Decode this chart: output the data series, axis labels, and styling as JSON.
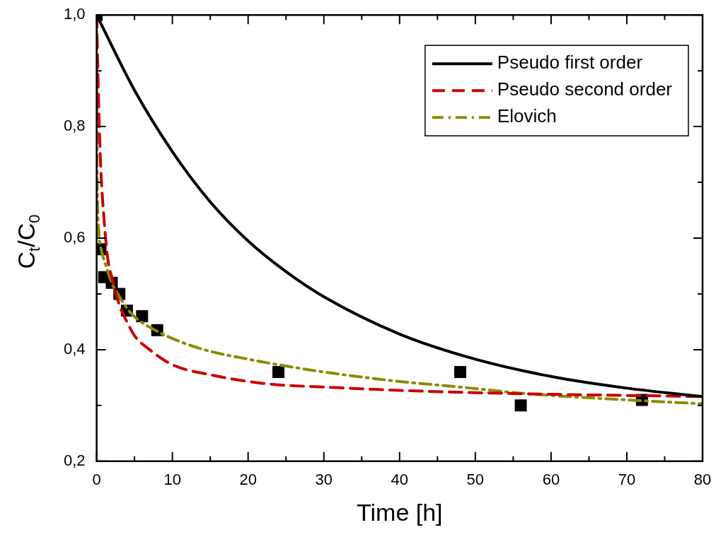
{
  "chart_data": {
    "type": "line",
    "xlabel": "Time [h]",
    "ylabel": "C$_{t}$/C$_{0}$",
    "xlim": [
      0,
      80
    ],
    "xticks": [
      0,
      {
        "value": 5,
        "label": null
      },
      10,
      {
        "value": 15,
        "label": null
      },
      20,
      {
        "value": 25,
        "label": null
      },
      30,
      {
        "value": 35,
        "label": null
      },
      40,
      {
        "value": 45,
        "label": null
      },
      50,
      {
        "value": 55,
        "label": null
      },
      60,
      {
        "value": 65,
        "label": null
      },
      70,
      {
        "value": 75,
        "label": null
      },
      80
    ],
    "ylim": [
      0.2,
      1.0
    ],
    "yticks": [
      {
        "value": 0.2,
        "label": "0,2"
      },
      {
        "value": 0.3,
        "label": null
      },
      {
        "value": 0.4,
        "label": "0,4"
      },
      {
        "value": 0.5,
        "label": null
      },
      {
        "value": 0.6,
        "label": "0,6"
      },
      {
        "value": 0.7,
        "label": null
      },
      {
        "value": 0.8,
        "label": "0,8"
      },
      {
        "value": 0.9,
        "label": null
      },
      {
        "value": 1.0,
        "label": "1,0"
      }
    ],
    "grid": false,
    "legend": "top right",
    "series": [
      {
        "type": "scatter",
        "color": "#000000",
        "marker": "square",
        "x": [
          0,
          0.5,
          1,
          2,
          3,
          4,
          6,
          8,
          24,
          48,
          56,
          72
        ],
        "values": [
          1.0,
          0.58,
          0.53,
          0.52,
          0.5,
          0.47,
          0.46,
          0.435,
          0.36,
          0.36,
          0.3,
          0.31
        ]
      },
      {
        "name": "Pseudo first order",
        "color": "#000000",
        "line_style": "solid",
        "marker": "none",
        "x": [
          0,
          5,
          10,
          15,
          20,
          25,
          30,
          40,
          50,
          60,
          70,
          80
        ],
        "values": [
          1.0,
          0.865,
          0.755,
          0.665,
          0.595,
          0.54,
          0.495,
          0.428,
          0.383,
          0.352,
          0.331,
          0.316
        ]
      },
      {
        "name": "Pseudo second order",
        "color": "#cc0000",
        "line_style": "dashed",
        "marker": "none",
        "x": [
          0,
          0.25,
          0.5,
          1,
          1.5,
          2,
          3,
          4,
          5,
          7,
          10,
          15,
          20,
          24,
          30,
          40,
          50,
          60,
          70,
          80
        ],
        "values": [
          1.0,
          0.85,
          0.74,
          0.63,
          0.56,
          0.53,
          0.48,
          0.45,
          0.425,
          0.4,
          0.373,
          0.355,
          0.343,
          0.337,
          0.333,
          0.327,
          0.323,
          0.32,
          0.318,
          0.316
        ]
      },
      {
        "name": "Elovich",
        "color": "#8b8b00",
        "line_style": "dashdot",
        "marker": "none",
        "x": [
          0,
          0.05,
          0.1,
          0.3,
          0.6,
          1.1,
          2,
          3,
          4.7,
          8,
          11.5,
          15,
          20,
          24,
          30,
          40,
          48,
          56,
          60,
          70,
          80
        ],
        "values": [
          1.0,
          0.75,
          0.68,
          0.61,
          0.58,
          0.556,
          0.52,
          0.495,
          0.463,
          0.433,
          0.412,
          0.397,
          0.383,
          0.373,
          0.36,
          0.343,
          0.333,
          0.322,
          0.318,
          0.31,
          0.303
        ]
      }
    ]
  }
}
